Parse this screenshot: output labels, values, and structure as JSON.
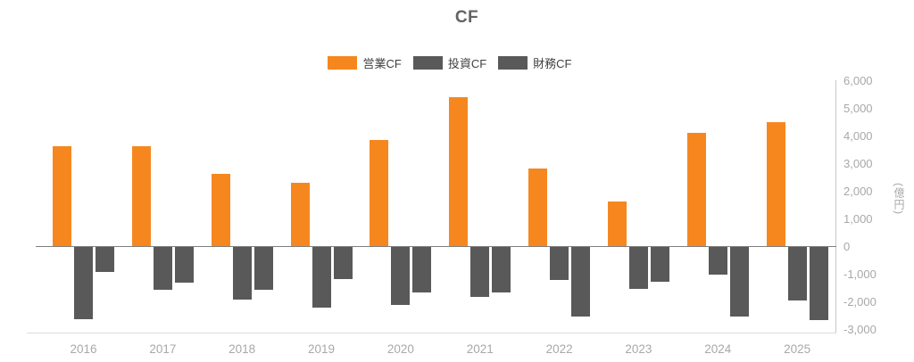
{
  "chart": {
    "title": "CF"
  },
  "chart_data": {
    "type": "bar",
    "title": "CF",
    "unit_label": "(億円)",
    "legend_position": "top",
    "grid": false,
    "y_axis_side": "right",
    "ylim": [
      -3000,
      6000
    ],
    "ytick_step": 1000,
    "ytick_labels": [
      "6,000",
      "5,000",
      "4,000",
      "3,000",
      "2,000",
      "1,000",
      "0",
      "-1,000",
      "-2,000",
      "-3,000"
    ],
    "categories": [
      "2016",
      "2017",
      "2018",
      "2019",
      "2020",
      "2021",
      "2022",
      "2023",
      "2024",
      "2025"
    ],
    "series": [
      {
        "name": "営業CF",
        "id": "operating-cf",
        "color": "#F6871F",
        "values": [
          3600,
          3600,
          2600,
          2300,
          3850,
          5400,
          2800,
          1600,
          4100,
          4500
        ]
      },
      {
        "name": "投資CF",
        "id": "investing-cf",
        "color": "#595959",
        "values": [
          -2600,
          -1550,
          -1900,
          -2200,
          -2100,
          -1800,
          -1200,
          -1500,
          -1000,
          -1950
        ]
      },
      {
        "name": "財務CF",
        "id": "financing-cf",
        "color": "#595959",
        "values": [
          -900,
          -1300,
          -1550,
          -1150,
          -1650,
          -1650,
          -2500,
          -1250,
          -2500,
          -2650
        ]
      }
    ],
    "colors": {
      "operating": "#F6871F",
      "investing_financing": "#595959",
      "axis_tick_label": "#A8A8A8",
      "title_text": "#636363",
      "legend_text": "#404040",
      "zero_line": "#7F7F7F",
      "axis_line": "#C9C9C9"
    }
  }
}
